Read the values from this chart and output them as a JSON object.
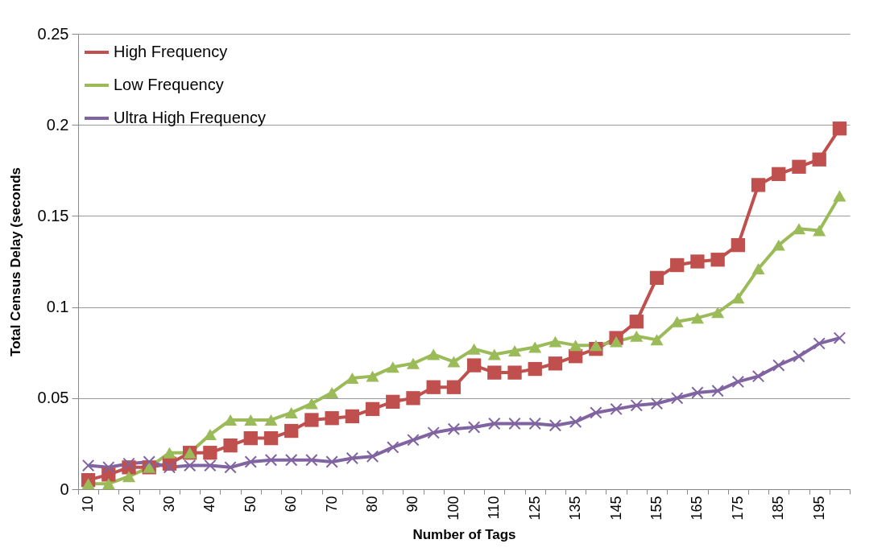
{
  "chart_data": {
    "type": "line",
    "xlabel": "Number of Tags",
    "ylabel": "Total Census Delay (seconds",
    "categories": [
      "10",
      null,
      "20",
      null,
      "30",
      null,
      "40",
      null,
      "50",
      null,
      "60",
      null,
      "70",
      null,
      "80",
      null,
      "90",
      null,
      "100",
      null,
      "110",
      null,
      "125",
      null,
      "135",
      null,
      "145",
      null,
      "155",
      null,
      "165",
      null,
      "175",
      null,
      "185",
      null,
      "195",
      null
    ],
    "series": [
      {
        "name": "High Frequency",
        "color": "#c0504d",
        "marker": "square",
        "values": [
          0.005,
          0.008,
          0.012,
          0.012,
          0.014,
          0.02,
          0.02,
          0.024,
          0.028,
          0.028,
          0.032,
          0.038,
          0.039,
          0.04,
          0.044,
          0.048,
          0.05,
          0.056,
          0.056,
          0.068,
          0.064,
          0.064,
          0.066,
          0.069,
          0.073,
          0.077,
          0.083,
          0.092,
          0.116,
          0.123,
          0.125,
          0.126,
          0.134,
          0.167,
          0.173,
          0.177,
          0.181,
          0.198
        ]
      },
      {
        "name": "Low Frequency",
        "color": "#9bbb59",
        "marker": "triangle",
        "values": [
          0.003,
          0.003,
          0.007,
          0.012,
          0.02,
          0.02,
          0.03,
          0.038,
          0.038,
          0.038,
          0.042,
          0.047,
          0.053,
          0.061,
          0.062,
          0.067,
          0.069,
          0.074,
          0.07,
          0.077,
          0.074,
          0.076,
          0.078,
          0.081,
          0.079,
          0.079,
          0.081,
          0.084,
          0.082,
          0.092,
          0.094,
          0.097,
          0.105,
          0.121,
          0.134,
          0.143,
          0.142,
          0.161
        ]
      },
      {
        "name": "Ultra High Frequency",
        "color": "#8064a2",
        "marker": "cross",
        "values": [
          0.013,
          0.012,
          0.014,
          0.015,
          0.012,
          0.013,
          0.013,
          0.012,
          0.015,
          0.016,
          0.016,
          0.016,
          0.015,
          0.017,
          0.018,
          0.023,
          0.027,
          0.031,
          0.033,
          0.034,
          0.036,
          0.036,
          0.036,
          0.035,
          0.037,
          0.042,
          0.044,
          0.046,
          0.047,
          0.05,
          0.053,
          0.054,
          0.059,
          0.062,
          0.068,
          0.073,
          0.08,
          0.083
        ]
      }
    ],
    "ylim": [
      0,
      0.25
    ],
    "yticks": [
      0,
      0.05,
      0.1,
      0.15,
      0.2,
      0.25
    ],
    "grid": "y",
    "legend": "top left"
  }
}
